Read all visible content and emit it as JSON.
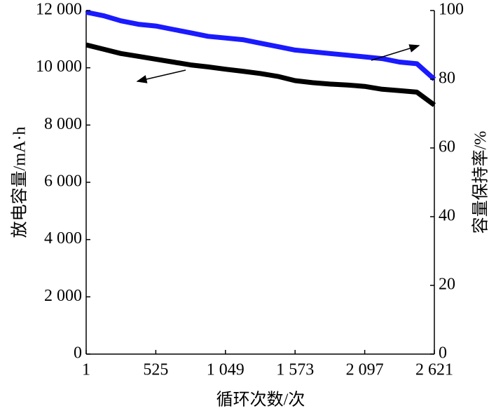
{
  "chart_data": {
    "type": "line",
    "x_label": "循环次数/次",
    "y_label": "放电容量/mA·h",
    "y2_label": "容量保持率/%",
    "x": [
      1,
      131,
      262,
      393,
      525,
      656,
      787,
      918,
      1049,
      1180,
      1311,
      1442,
      1573,
      1704,
      1835,
      1966,
      2097,
      2228,
      2359,
      2490,
      2621
    ],
    "series": [
      {
        "color": "#000000",
        "values": [
          10800,
          10650,
          10500,
          10400,
          10300,
          10200,
          10100,
          10030,
          9950,
          9880,
          9800,
          9700,
          9550,
          9480,
          9430,
          9400,
          9350,
          9250,
          9200,
          9150,
          8700
        ]
      },
      {
        "color": "#1a1aff",
        "axis": "y2",
        "values": [
          99.5,
          98.5,
          97,
          96,
          95.5,
          94.5,
          93.5,
          92.5,
          92,
          91.5,
          90.5,
          89.5,
          88.5,
          88,
          87.5,
          87,
          86.5,
          86,
          85,
          84.5,
          80
        ]
      }
    ],
    "xlim": [
      1,
      2621
    ],
    "xticks": [
      1,
      525,
      {
        "value": 1049,
        "label": "1 049"
      },
      {
        "value": 1573,
        "label": "1 573"
      },
      {
        "value": 2097,
        "label": "2 097"
      },
      {
        "value": 2621,
        "label": "2 621"
      }
    ],
    "ylim": [
      0,
      12000
    ],
    "yticks": [
      0,
      {
        "value": 2000,
        "label": "2 000"
      },
      {
        "value": 4000,
        "label": "4 000"
      },
      {
        "value": 6000,
        "label": "6 000"
      },
      {
        "value": 8000,
        "label": "8 000"
      },
      {
        "value": 10000,
        "label": "10 000"
      },
      {
        "value": 12000,
        "label": "12 000"
      }
    ],
    "y2lim": [
      0,
      100
    ],
    "y2ticks": [
      0,
      20,
      40,
      60,
      80,
      100
    ]
  }
}
